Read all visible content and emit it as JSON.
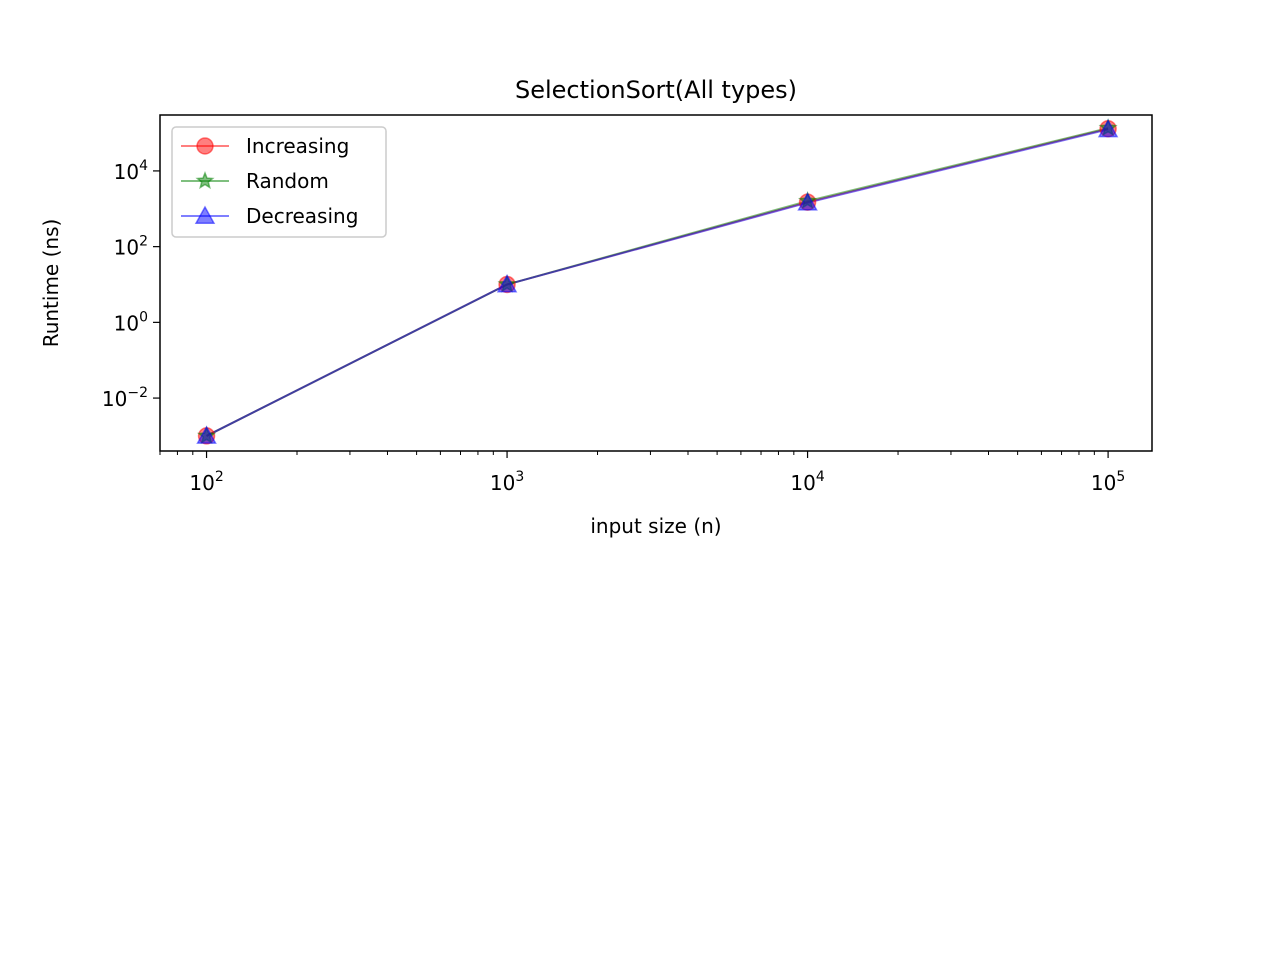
{
  "chart_data": {
    "type": "line",
    "title": "SelectionSort(All types)",
    "xlabel": "input size (n)",
    "ylabel": "Runtime (ns)",
    "xscale": "log",
    "yscale": "log",
    "xlim": [
      70,
      140000
    ],
    "ylim": [
      0.0004,
      300000
    ],
    "x": [
      100,
      1000,
      10000,
      100000
    ],
    "x_ticks": [
      {
        "base": "10",
        "exp": "2"
      },
      {
        "base": "10",
        "exp": "3"
      },
      {
        "base": "10",
        "exp": "4"
      },
      {
        "base": "10",
        "exp": "5"
      }
    ],
    "y_ticks": [
      {
        "base": "10",
        "exp": "−2"
      },
      {
        "base": "10",
        "exp": "0"
      },
      {
        "base": "10",
        "exp": "2"
      },
      {
        "base": "10",
        "exp": "4"
      }
    ],
    "grid": false,
    "legend_position": "upper-left",
    "series": [
      {
        "name": "Increasing",
        "marker": "circle",
        "color": "#ff0000",
        "values": [
          0.001,
          10,
          1500,
          130000
        ]
      },
      {
        "name": "Random",
        "marker": "star",
        "color": "#008000",
        "values": [
          0.001,
          10,
          1600,
          135000
        ]
      },
      {
        "name": "Decreasing",
        "marker": "triangle",
        "color": "#0000ff",
        "values": [
          0.001,
          10,
          1450,
          125000
        ]
      }
    ]
  }
}
